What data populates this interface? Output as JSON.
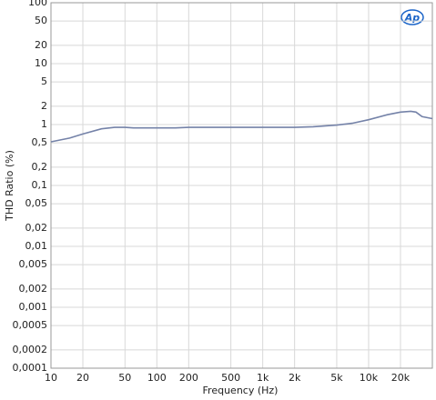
{
  "chart_data": {
    "type": "line",
    "logo": "Ap",
    "x_label": "Frequency (Hz)",
    "y_label": "THD Ratio (%)",
    "xlog": true,
    "ylog": true,
    "grid": true,
    "xlim": [
      10,
      40000
    ],
    "ylim": [
      0.0001,
      100
    ],
    "xticks": [
      10,
      20,
      50,
      100,
      200,
      500,
      {
        "value": 1000,
        "label": "1k"
      },
      {
        "value": 2000,
        "label": "2k"
      },
      {
        "value": 5000,
        "label": "5k"
      },
      {
        "value": 10000,
        "label": "10k"
      },
      {
        "value": 20000,
        "label": "20k"
      }
    ],
    "yticks": [
      100,
      50,
      20,
      10,
      5,
      2,
      1,
      {
        "value": 0.5,
        "label": "0,5"
      },
      {
        "value": 0.2,
        "label": "0,2"
      },
      {
        "value": 0.1,
        "label": "0,1"
      },
      {
        "value": 0.05,
        "label": "0,05"
      },
      {
        "value": 0.02,
        "label": "0,02"
      },
      {
        "value": 0.01,
        "label": "0,01"
      },
      {
        "value": 0.005,
        "label": "0,005"
      },
      {
        "value": 0.002,
        "label": "0,002"
      },
      {
        "value": 0.001,
        "label": "0,001"
      },
      {
        "value": 0.0005,
        "label": "0,0005"
      },
      {
        "value": 0.0002,
        "label": "0,0002"
      },
      {
        "value": 0.0001,
        "label": "0,0001"
      }
    ],
    "series": [
      {
        "color": "#7482a8",
        "x": [
          10,
          15,
          20,
          30,
          40,
          50,
          60,
          100,
          150,
          200,
          500,
          1000,
          2000,
          3000,
          5000,
          7000,
          10000,
          15000,
          20000,
          25000,
          28000,
          32000,
          40000
        ],
        "values": [
          0.52,
          0.6,
          0.7,
          0.85,
          0.9,
          0.9,
          0.88,
          0.88,
          0.88,
          0.9,
          0.9,
          0.9,
          0.9,
          0.92,
          0.98,
          1.05,
          1.2,
          1.45,
          1.6,
          1.65,
          1.6,
          1.35,
          1.25
        ]
      }
    ]
  }
}
